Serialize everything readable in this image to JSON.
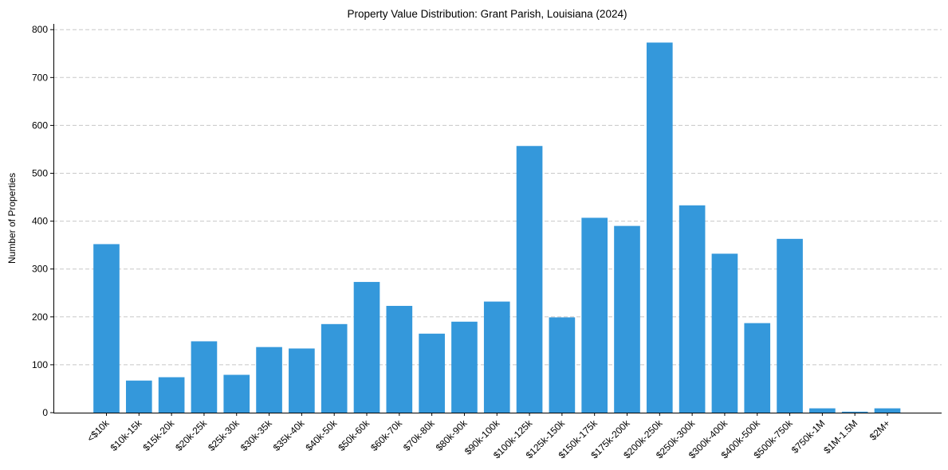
{
  "chart_data": {
    "type": "bar",
    "title": "Property Value Distribution: Grant Parish, Louisiana (2024)",
    "xlabel": "",
    "ylabel": "Number of Properties",
    "ylim": [
      0,
      812
    ],
    "yticks": [
      0,
      100,
      200,
      300,
      400,
      500,
      600,
      700,
      800
    ],
    "grid": "y-dashed",
    "bar_color": "#3498db",
    "grid_color": "#c8c8c8",
    "categories": [
      "<$10k",
      "$10k-15k",
      "$15k-20k",
      "$20k-25k",
      "$25k-30k",
      "$30k-35k",
      "$35k-40k",
      "$40k-50k",
      "$50k-60k",
      "$60k-70k",
      "$70k-80k",
      "$80k-90k",
      "$90k-100k",
      "$100k-125k",
      "$125k-150k",
      "$150k-175k",
      "$175k-200k",
      "$200k-250k",
      "$250k-300k",
      "$300k-400k",
      "$400k-500k",
      "$500k-750k",
      "$750k-1M",
      "$1M-1.5M",
      "$2M+"
    ],
    "values": [
      352,
      67,
      74,
      149,
      79,
      137,
      134,
      185,
      273,
      223,
      165,
      190,
      232,
      557,
      199,
      407,
      390,
      773,
      433,
      332,
      187,
      363,
      9,
      2,
      9
    ]
  }
}
